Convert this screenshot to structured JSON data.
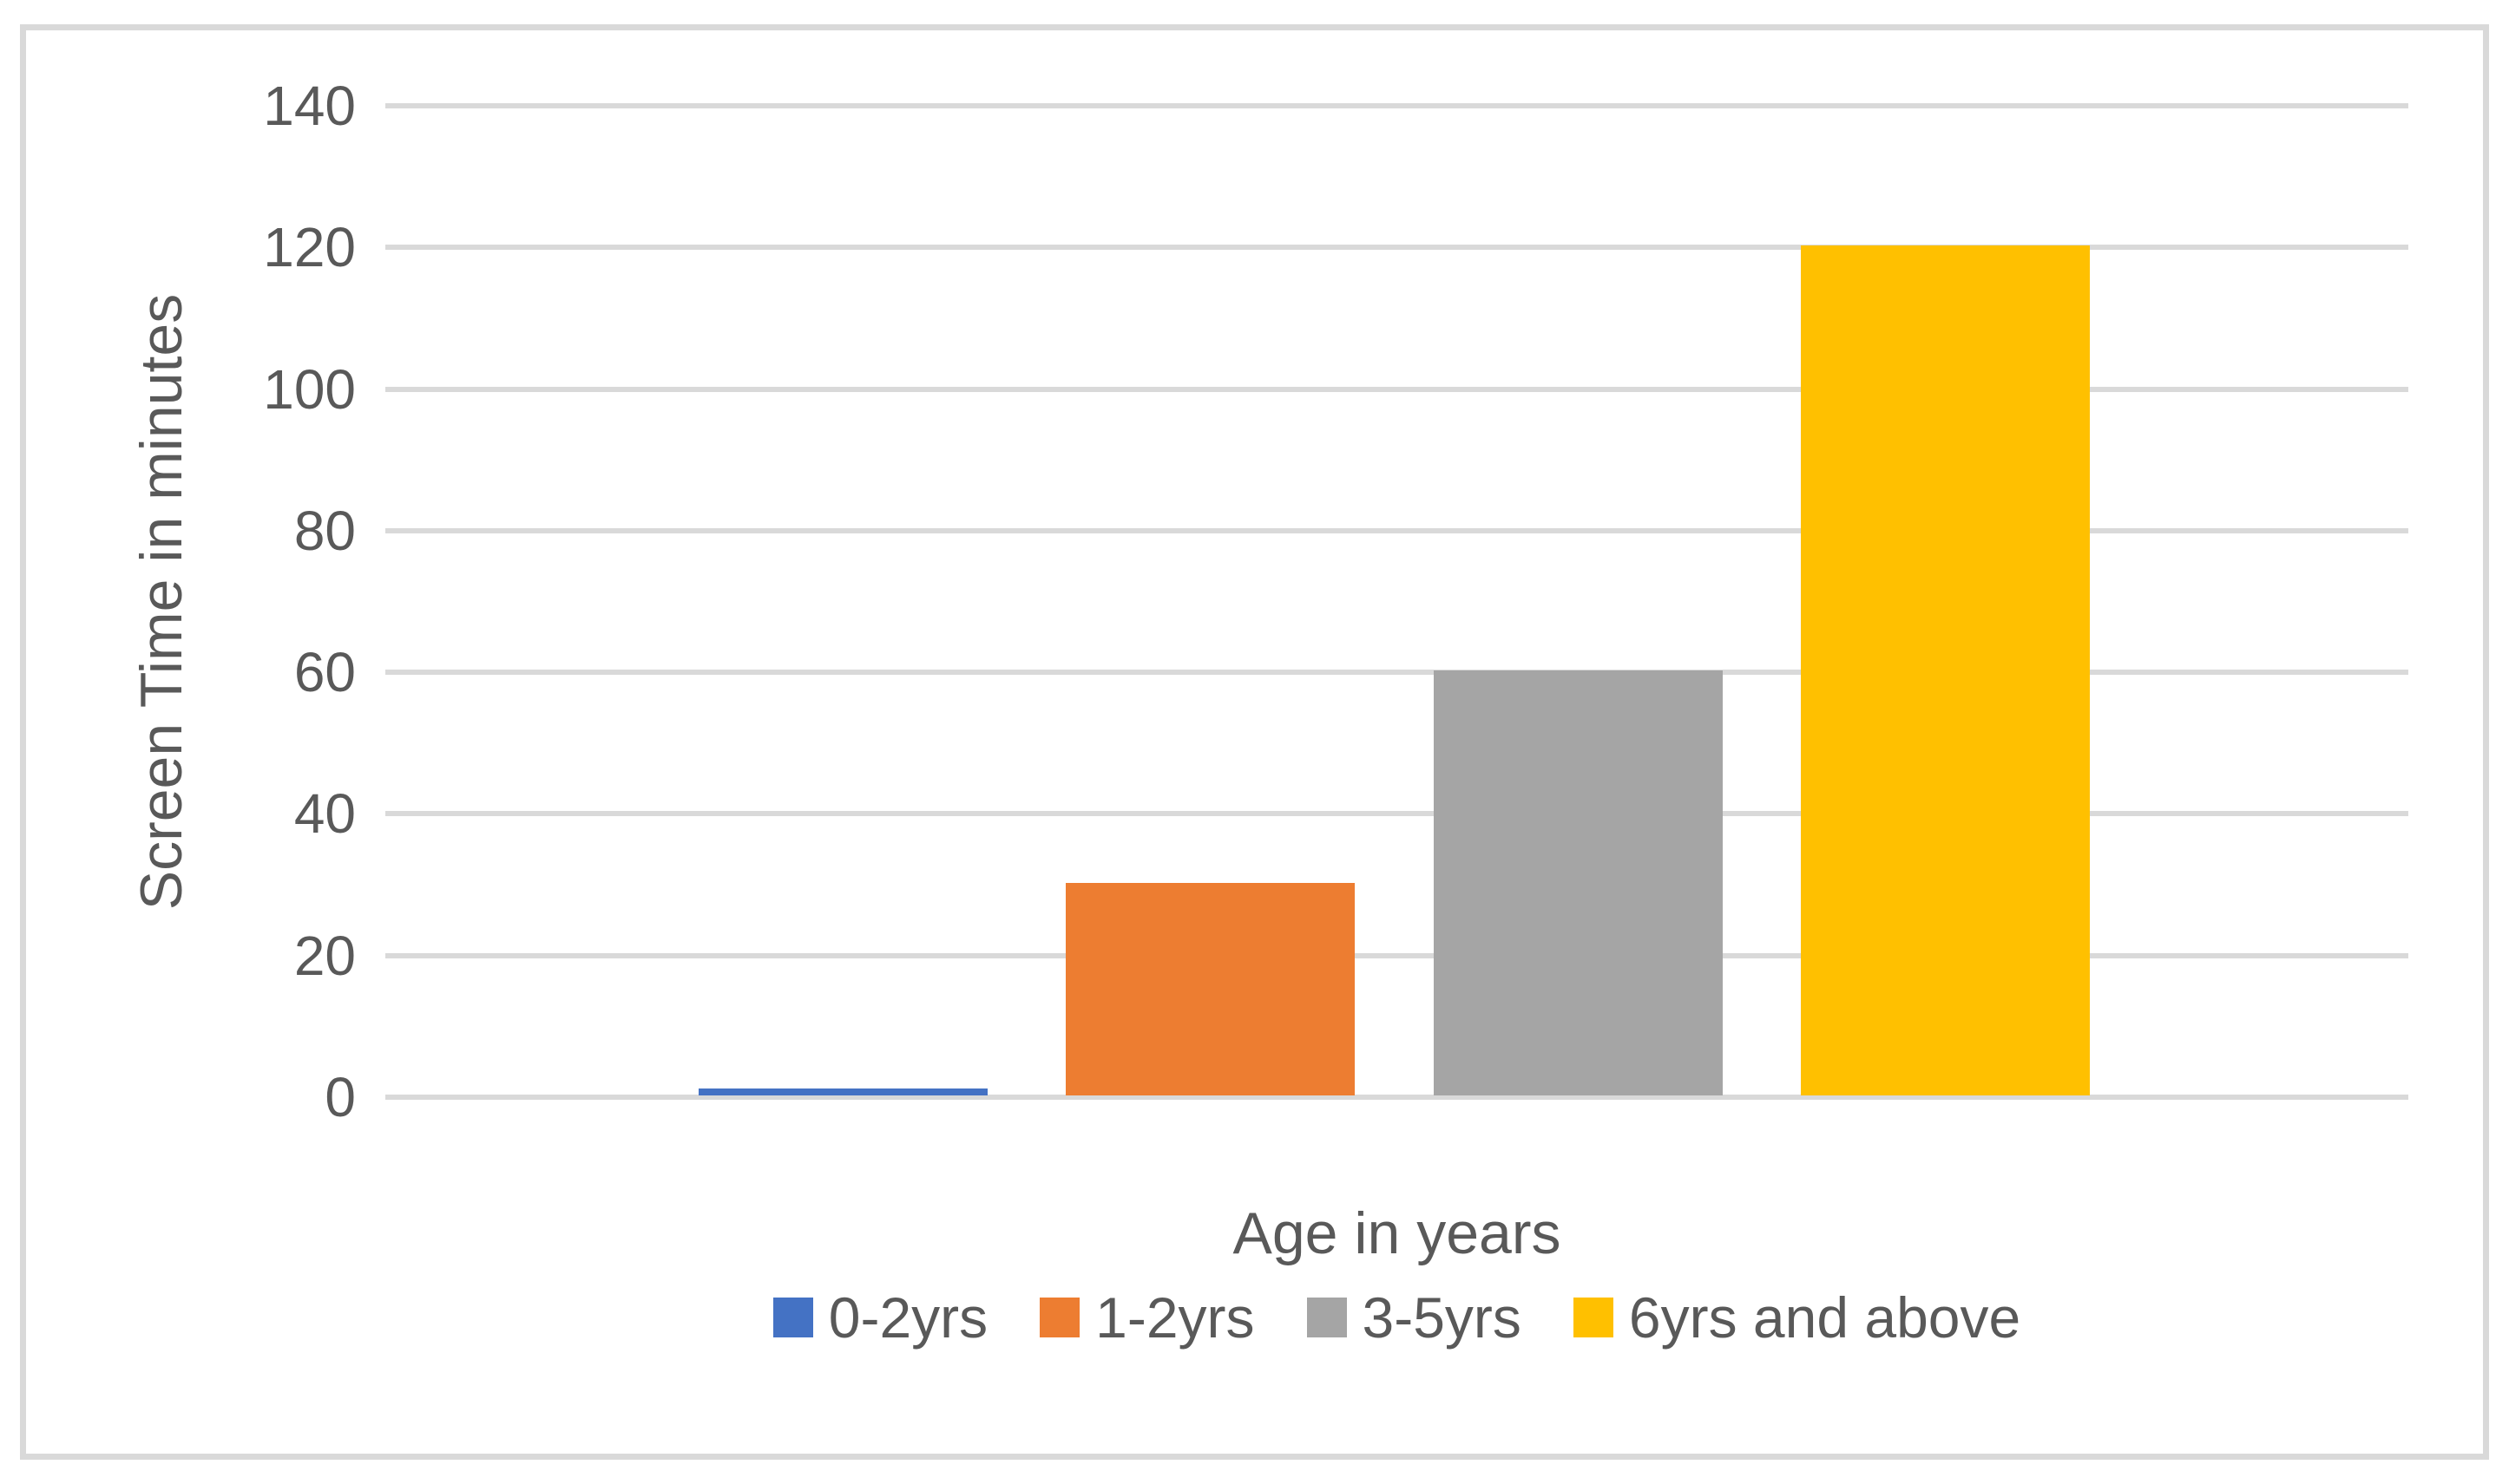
{
  "figure": {
    "background_color": "#FFFFFF",
    "border_color": "#D9D9D9"
  },
  "chart_data": {
    "type": "bar",
    "title": "",
    "xlabel": "Age in years",
    "ylabel": "Screen Time in minutes",
    "categories": [
      "0-2yrs",
      "1-2yrs",
      "3-5yrs",
      "6yrs and above"
    ],
    "values": [
      1,
      30,
      60,
      120
    ],
    "colors": [
      "#4472C4",
      "#ED7D31",
      "#A5A5A5",
      "#FFC000"
    ],
    "ylim": [
      0,
      140
    ],
    "yticks": [
      0,
      20,
      40,
      60,
      80,
      100,
      120,
      140
    ],
    "grid": true,
    "gridline_color": "#D9D9D9",
    "axis_line_color": "#D9D9D9",
    "axis_text_color": "#595959",
    "legend_position": "bottom",
    "legend_entries": [
      "0-2yrs",
      "1-2yrs",
      "3-5yrs",
      "6yrs and above"
    ]
  }
}
